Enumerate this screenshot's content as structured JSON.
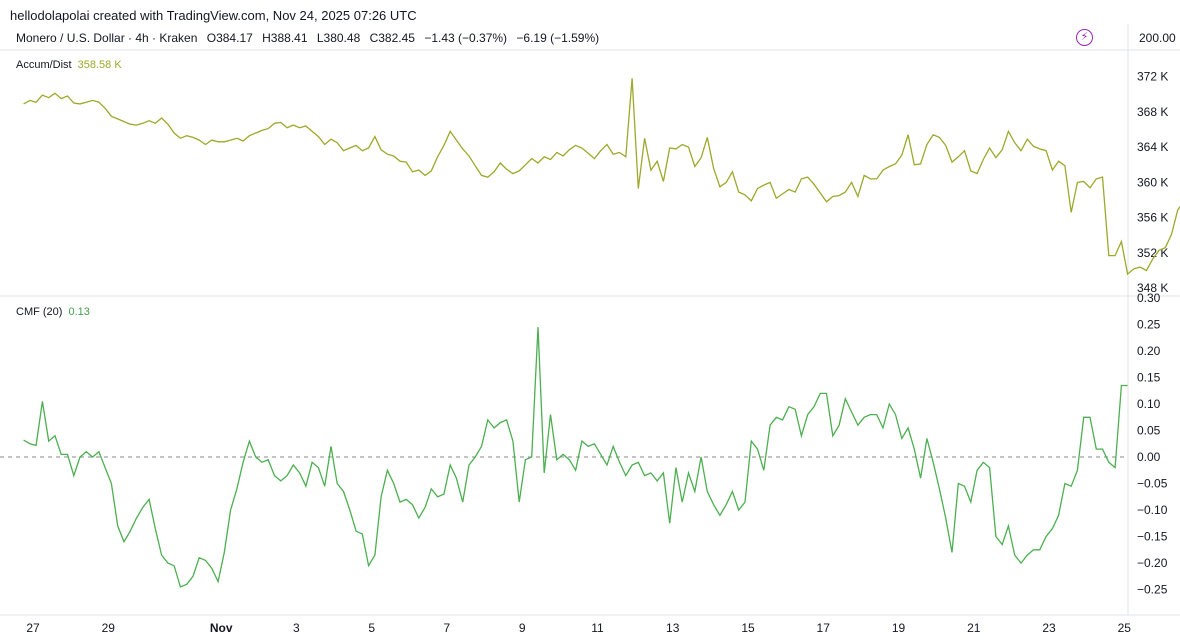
{
  "header": {
    "watermark": "hellodolapolai created with TradingView.com, Nov 24, 2025 07:26 UTC",
    "symbol": "Monero / U.S. Dollar · 4h · Kraken",
    "open": "O384.17",
    "high": "H388.41",
    "low": "L380.48",
    "close": "C382.45",
    "change": "−1.43 (−0.37%)",
    "change2": "−6.19 (−1.59%)",
    "top_scale_value": "200.00",
    "icon": "lightning-icon"
  },
  "colors": {
    "accum_dist": "#9ea82a",
    "cmf": "#4caf50",
    "zero_line": "#888888",
    "separator": "#e0e3eb"
  },
  "chart_data": [
    {
      "type": "line",
      "title": "",
      "label": "Accum/Dist",
      "value_label": "358.58 K",
      "y_tick_labels": [
        "372 K",
        "368 K",
        "364 K",
        "360 K",
        "356 K",
        "352 K",
        "348 K"
      ],
      "y_ticks": [
        372,
        368,
        364,
        360,
        356,
        352,
        348
      ],
      "ylim": [
        347.8,
        373.2
      ],
      "units": "K",
      "x_day_start": 26.75,
      "x_step_days": 0.1667,
      "values": [
        368.9,
        369.3,
        369.1,
        369.9,
        369.6,
        370.1,
        369.5,
        369.8,
        369.0,
        368.9,
        369.1,
        369.3,
        369.1,
        368.4,
        367.5,
        367.2,
        366.9,
        366.6,
        366.5,
        366.7,
        367.0,
        366.7,
        367.3,
        366.6,
        365.6,
        365.0,
        365.3,
        365.1,
        364.8,
        364.3,
        364.8,
        364.6,
        364.6,
        364.8,
        365.0,
        364.7,
        365.3,
        365.6,
        365.9,
        366.1,
        366.7,
        366.8,
        366.2,
        366.5,
        366.2,
        366.4,
        365.8,
        365.2,
        364.3,
        364.9,
        364.5,
        363.6,
        363.9,
        364.2,
        363.6,
        363.9,
        365.2,
        363.7,
        363.2,
        363.0,
        362.4,
        362.3,
        361.2,
        361.4,
        360.8,
        361.3,
        362.9,
        364.2,
        365.8,
        364.8,
        363.8,
        363.0,
        361.9,
        360.8,
        360.6,
        361.2,
        362.2,
        361.5,
        361.0,
        361.3,
        362.0,
        362.7,
        362.2,
        362.9,
        362.6,
        363.4,
        363.0,
        363.7,
        364.2,
        363.9,
        363.3,
        362.7,
        363.6,
        364.3,
        363.2,
        363.4,
        362.9,
        371.8,
        359.3,
        365.0,
        361.4,
        362.4,
        360.1,
        363.9,
        363.8,
        364.3,
        364.0,
        361.8,
        362.8,
        365.1,
        361.6,
        359.5,
        360.0,
        361.2,
        358.9,
        358.6,
        357.9,
        359.3,
        359.7,
        360.0,
        358.2,
        358.7,
        359.2,
        358.9,
        360.4,
        360.6,
        359.8,
        358.8,
        357.8,
        358.4,
        358.5,
        358.9,
        360.0,
        358.4,
        360.8,
        360.4,
        360.4,
        361.4,
        361.8,
        362.1,
        363.1,
        365.4,
        362.0,
        362.1,
        364.3,
        365.4,
        365.1,
        364.2,
        362.3,
        362.9,
        363.6,
        361.3,
        361.0,
        362.6,
        363.9,
        362.8,
        363.7,
        365.8,
        364.5,
        363.6,
        364.9,
        364.1,
        363.8,
        363.6,
        361.4,
        362.4,
        361.9,
        356.6,
        360.0,
        360.1,
        359.4,
        360.4,
        360.6,
        351.7,
        351.7,
        353.3,
        349.6,
        350.2,
        350.4,
        350.0,
        351.3,
        352.3,
        352.6,
        354.1,
        356.9,
        357.8,
        358.9,
        361.5,
        365.5,
        361.4,
        360.3,
        359.5,
        359.1,
        358.9,
        358.6
      ]
    },
    {
      "type": "line",
      "title": "",
      "label": "CMF (20)",
      "value_label": "0.13",
      "y_tick_labels": [
        "0.30",
        "0.25",
        "0.20",
        "0.15",
        "0.10",
        "0.05",
        "0.00",
        "−0.05",
        "−0.10",
        "−0.15",
        "−0.20",
        "−0.25"
      ],
      "y_ticks": [
        0.3,
        0.25,
        0.2,
        0.15,
        0.1,
        0.05,
        0.0,
        -0.05,
        -0.1,
        -0.15,
        -0.2,
        -0.25
      ],
      "ylim": [
        -0.298,
        0.3
      ],
      "zero_line": true,
      "x_day_start": 26.75,
      "x_step_days": 0.1667,
      "values": [
        0.032,
        0.025,
        0.022,
        0.105,
        0.03,
        0.04,
        0.005,
        0.005,
        -0.035,
        0.0,
        0.01,
        0.0,
        0.01,
        -0.02,
        -0.05,
        -0.13,
        -0.16,
        -0.14,
        -0.115,
        -0.095,
        -0.08,
        -0.135,
        -0.185,
        -0.2,
        -0.205,
        -0.245,
        -0.24,
        -0.225,
        -0.19,
        -0.195,
        -0.21,
        -0.235,
        -0.18,
        -0.1,
        -0.06,
        -0.01,
        0.03,
        0.0,
        -0.01,
        -0.005,
        -0.035,
        -0.045,
        -0.035,
        -0.015,
        -0.03,
        -0.055,
        -0.01,
        -0.02,
        -0.055,
        0.02,
        -0.05,
        -0.065,
        -0.1,
        -0.14,
        -0.145,
        -0.205,
        -0.185,
        -0.075,
        -0.025,
        -0.05,
        -0.085,
        -0.08,
        -0.09,
        -0.115,
        -0.095,
        -0.06,
        -0.075,
        -0.07,
        -0.015,
        -0.04,
        -0.085,
        -0.015,
        0.0,
        0.02,
        0.07,
        0.055,
        0.065,
        0.07,
        0.03,
        -0.085,
        -0.005,
        0.0,
        0.245,
        -0.03,
        0.08,
        -0.005,
        0.005,
        -0.005,
        -0.025,
        0.03,
        0.02,
        0.025,
        0.005,
        -0.015,
        0.02,
        -0.01,
        -0.035,
        -0.015,
        -0.01,
        -0.035,
        -0.03,
        -0.045,
        -0.03,
        -0.125,
        -0.02,
        -0.085,
        -0.03,
        -0.065,
        0.0,
        -0.065,
        -0.09,
        -0.11,
        -0.09,
        -0.065,
        -0.1,
        -0.085,
        0.03,
        0.015,
        -0.025,
        0.06,
        0.075,
        0.07,
        0.095,
        0.09,
        0.04,
        0.08,
        0.095,
        0.12,
        0.12,
        0.04,
        0.06,
        0.11,
        0.085,
        0.06,
        0.075,
        0.08,
        0.08,
        0.055,
        0.1,
        0.08,
        0.035,
        0.055,
        0.015,
        -0.04,
        0.035,
        -0.01,
        -0.06,
        -0.115,
        -0.18,
        -0.05,
        -0.055,
        -0.085,
        -0.025,
        -0.01,
        -0.02,
        -0.15,
        -0.165,
        -0.13,
        -0.185,
        -0.2,
        -0.185,
        -0.175,
        -0.175,
        -0.15,
        -0.135,
        -0.11,
        -0.05,
        -0.055,
        -0.025,
        0.075,
        0.075,
        0.015,
        0.015,
        -0.01,
        -0.02,
        0.135,
        0.135
      ]
    }
  ],
  "x_axis": {
    "ticks": [
      {
        "label": "27",
        "day": 27,
        "bold": false
      },
      {
        "label": "29",
        "day": 29,
        "bold": false
      },
      {
        "label": "Nov",
        "day": 32,
        "bold": true
      },
      {
        "label": "3",
        "day": 34,
        "bold": false
      },
      {
        "label": "5",
        "day": 36,
        "bold": false
      },
      {
        "label": "7",
        "day": 38,
        "bold": false
      },
      {
        "label": "9",
        "day": 40,
        "bold": false
      },
      {
        "label": "11",
        "day": 42,
        "bold": false
      },
      {
        "label": "13",
        "day": 44,
        "bold": false
      },
      {
        "label": "15",
        "day": 46,
        "bold": false
      },
      {
        "label": "17",
        "day": 48,
        "bold": false
      },
      {
        "label": "19",
        "day": 50,
        "bold": false
      },
      {
        "label": "21",
        "day": 52,
        "bold": false
      },
      {
        "label": "23",
        "day": 54,
        "bold": false
      },
      {
        "label": "25",
        "day": 56,
        "bold": false
      }
    ]
  }
}
